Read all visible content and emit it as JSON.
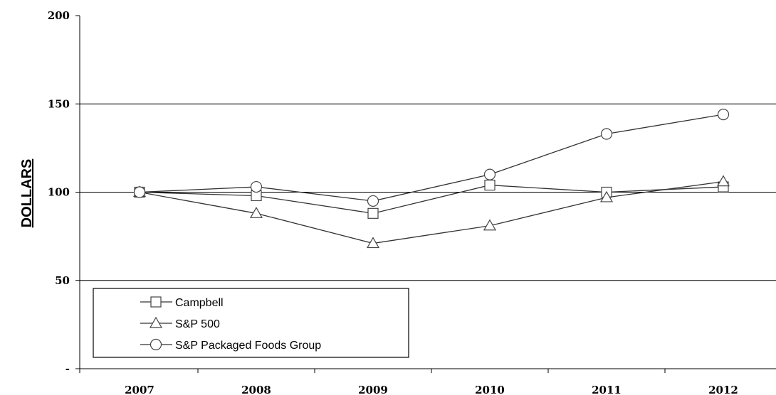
{
  "chart_data": {
    "type": "line",
    "ylabel": "DOLLARS",
    "ylim": [
      0,
      200
    ],
    "yticks": [
      {
        "value": 200,
        "label": "200"
      },
      {
        "value": 150,
        "label": "150"
      },
      {
        "value": 100,
        "label": "100"
      },
      {
        "value": 50,
        "label": "50"
      },
      {
        "value": 0,
        "label": "-"
      }
    ],
    "categories": [
      "2007",
      "2008",
      "2009",
      "2010",
      "2011",
      "2012"
    ],
    "gridlines": [
      150,
      100,
      50
    ],
    "legend_position": "bottom-left",
    "series": [
      {
        "name": "Campbell",
        "marker": "square",
        "values": [
          100,
          98,
          88,
          104,
          100,
          103
        ]
      },
      {
        "name": "S&P 500",
        "marker": "triangle",
        "values": [
          100,
          88,
          71,
          81,
          97,
          106
        ]
      },
      {
        "name": "S&P Packaged Foods Group",
        "marker": "circle",
        "values": [
          100,
          103,
          95,
          110,
          133,
          144
        ]
      }
    ]
  }
}
